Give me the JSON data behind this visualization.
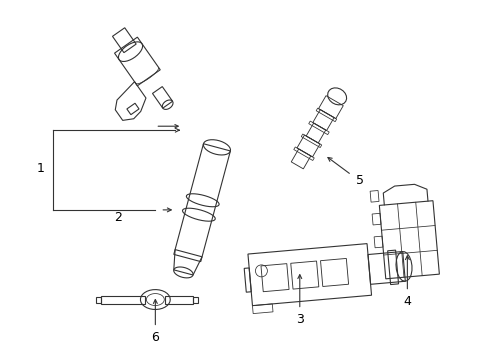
{
  "background_color": "#ffffff",
  "line_color": "#333333",
  "label_color": "#000000",
  "figsize": [
    4.89,
    3.6
  ],
  "dpi": 100
}
